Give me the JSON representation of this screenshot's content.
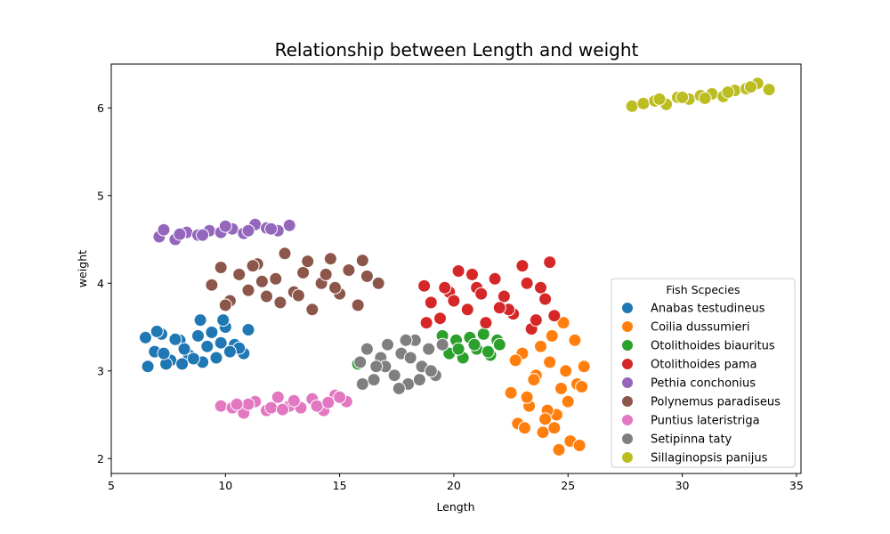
{
  "chart_data": {
    "type": "scatter",
    "title": "Relationship between Length and weight",
    "xlabel": "Length",
    "ylabel": "weight",
    "xlim": [
      5,
      35.2
    ],
    "ylim": [
      1.83,
      6.5
    ],
    "xticks": [
      5,
      10,
      15,
      20,
      25,
      30,
      35
    ],
    "yticks": [
      2,
      3,
      4,
      5,
      6
    ],
    "grid": false,
    "legend": {
      "title": "Fish Scpecies",
      "placement": "lower-right"
    },
    "series": [
      {
        "name": "Anabas testudineus",
        "color": "#1f77b4",
        "x": [
          6.5,
          6.9,
          7.2,
          7.6,
          8.0,
          8.4,
          8.8,
          9.2,
          9.6,
          10.0,
          10.4,
          10.8,
          11.0,
          6.6,
          7.4,
          8.2,
          9.0,
          9.8,
          10.6,
          7.0,
          7.8,
          8.6,
          9.4,
          10.2,
          8.9,
          9.9,
          7.3,
          8.1
        ],
        "y": [
          3.38,
          3.22,
          3.42,
          3.12,
          3.35,
          3.18,
          3.4,
          3.28,
          3.15,
          3.5,
          3.3,
          3.2,
          3.47,
          3.05,
          3.08,
          3.25,
          3.1,
          3.32,
          3.26,
          3.45,
          3.36,
          3.14,
          3.44,
          3.22,
          3.58,
          3.58,
          3.2,
          3.08
        ]
      },
      {
        "name": "Coilia dussumieri",
        "color": "#ff7f0e",
        "x": [
          22.5,
          22.8,
          23.0,
          23.3,
          23.6,
          23.9,
          24.2,
          24.5,
          24.8,
          25.1,
          25.4,
          25.7,
          22.7,
          23.2,
          23.8,
          24.4,
          25.0,
          25.5,
          23.5,
          24.1,
          24.7,
          25.3,
          24.0,
          24.6,
          23.1,
          25.6,
          24.9,
          24.3
        ],
        "y": [
          2.75,
          2.4,
          3.2,
          2.6,
          2.95,
          2.3,
          3.1,
          2.5,
          3.55,
          2.2,
          2.85,
          3.05,
          3.12,
          2.7,
          3.28,
          2.35,
          2.65,
          2.15,
          2.9,
          2.55,
          2.8,
          3.35,
          2.45,
          2.1,
          2.35,
          2.82,
          3.0,
          3.4
        ]
      },
      {
        "name": "Otolithoides biauritus",
        "color": "#2ca02c",
        "x": [
          15.8,
          19.5,
          19.8,
          20.1,
          20.4,
          20.7,
          21.0,
          21.3,
          21.6,
          21.9,
          22.0,
          20.2,
          20.9,
          21.5
        ],
        "y": [
          3.08,
          3.4,
          3.2,
          3.35,
          3.15,
          3.38,
          3.25,
          3.42,
          3.18,
          3.35,
          3.3,
          3.25,
          3.3,
          3.22
        ]
      },
      {
        "name": "Otolithoides pama",
        "color": "#d62728",
        "x": [
          18.7,
          19.0,
          19.4,
          19.8,
          20.2,
          20.6,
          21.0,
          21.4,
          21.8,
          22.2,
          22.6,
          23.0,
          23.4,
          23.8,
          24.2,
          24.4,
          20.0,
          21.2,
          22.4,
          23.6,
          19.6,
          20.8,
          22.0,
          23.2,
          24.0,
          18.8
        ],
        "y": [
          3.97,
          3.78,
          3.6,
          3.9,
          4.14,
          3.7,
          3.95,
          3.55,
          4.05,
          3.85,
          3.65,
          4.2,
          3.48,
          3.95,
          4.24,
          3.63,
          3.8,
          3.88,
          3.7,
          3.58,
          3.95,
          4.1,
          3.72,
          4.0,
          3.82,
          3.55
        ]
      },
      {
        "name": "Pethia conchonius",
        "color": "#9467bd",
        "x": [
          7.1,
          7.3,
          7.8,
          8.3,
          8.8,
          9.3,
          9.8,
          10.3,
          10.8,
          11.3,
          11.8,
          12.3,
          12.8,
          9.0,
          10.0,
          11.0,
          12.0,
          8.0
        ],
        "y": [
          4.53,
          4.61,
          4.5,
          4.58,
          4.55,
          4.6,
          4.58,
          4.62,
          4.57,
          4.67,
          4.63,
          4.6,
          4.66,
          4.55,
          4.65,
          4.6,
          4.62,
          4.56
        ]
      },
      {
        "name": "Polynemus paradiseus",
        "color": "#8c564b",
        "x": [
          9.4,
          9.8,
          10.2,
          10.6,
          11.0,
          11.4,
          11.8,
          12.2,
          12.6,
          13.0,
          13.4,
          13.8,
          14.2,
          14.6,
          15.0,
          15.4,
          15.8,
          16.2,
          16.7,
          10.0,
          11.2,
          12.4,
          13.6,
          14.8,
          16.0,
          11.6,
          13.2,
          14.4
        ],
        "y": [
          3.98,
          4.18,
          3.8,
          4.1,
          3.92,
          4.22,
          3.85,
          4.05,
          4.34,
          3.9,
          4.12,
          3.7,
          4.0,
          4.28,
          3.88,
          4.15,
          3.75,
          4.08,
          4.0,
          3.75,
          4.2,
          3.78,
          4.25,
          3.95,
          4.26,
          4.02,
          3.86,
          4.1
        ]
      },
      {
        "name": "Puntius lateristriga",
        "color": "#e377c2",
        "x": [
          9.8,
          10.3,
          10.8,
          11.3,
          11.8,
          12.3,
          12.8,
          13.3,
          13.8,
          14.3,
          14.8,
          15.3,
          11.0,
          12.0,
          13.0,
          14.0,
          15.0,
          10.5,
          12.5,
          14.5
        ],
        "y": [
          2.6,
          2.58,
          2.52,
          2.65,
          2.55,
          2.7,
          2.6,
          2.58,
          2.68,
          2.55,
          2.72,
          2.65,
          2.62,
          2.58,
          2.66,
          2.6,
          2.7,
          2.62,
          2.56,
          2.64
        ]
      },
      {
        "name": "Setipinna taty",
        "color": "#7f7f7f",
        "x": [
          15.9,
          16.2,
          16.5,
          16.8,
          17.1,
          17.4,
          17.7,
          18.0,
          18.3,
          18.6,
          18.9,
          19.2,
          19.5,
          16.0,
          17.0,
          18.1,
          19.0,
          17.6,
          18.5,
          16.6,
          17.9
        ],
        "y": [
          3.1,
          3.25,
          2.9,
          3.15,
          3.3,
          2.95,
          3.2,
          2.85,
          3.35,
          3.05,
          3.25,
          2.95,
          3.3,
          2.85,
          3.05,
          3.15,
          3.0,
          2.8,
          2.9,
          3.05,
          3.35
        ]
      },
      {
        "name": "Sillaginopsis panijus",
        "color": "#bcbd22",
        "x": [
          27.8,
          28.3,
          28.8,
          29.3,
          29.8,
          30.3,
          30.8,
          31.3,
          31.8,
          32.3,
          32.8,
          33.3,
          33.8,
          29.0,
          30.0,
          31.0,
          32.0,
          33.0
        ],
        "y": [
          6.02,
          6.05,
          6.08,
          6.04,
          6.12,
          6.1,
          6.14,
          6.16,
          6.13,
          6.2,
          6.22,
          6.28,
          6.21,
          6.1,
          6.12,
          6.11,
          6.18,
          6.24
        ]
      }
    ]
  }
}
